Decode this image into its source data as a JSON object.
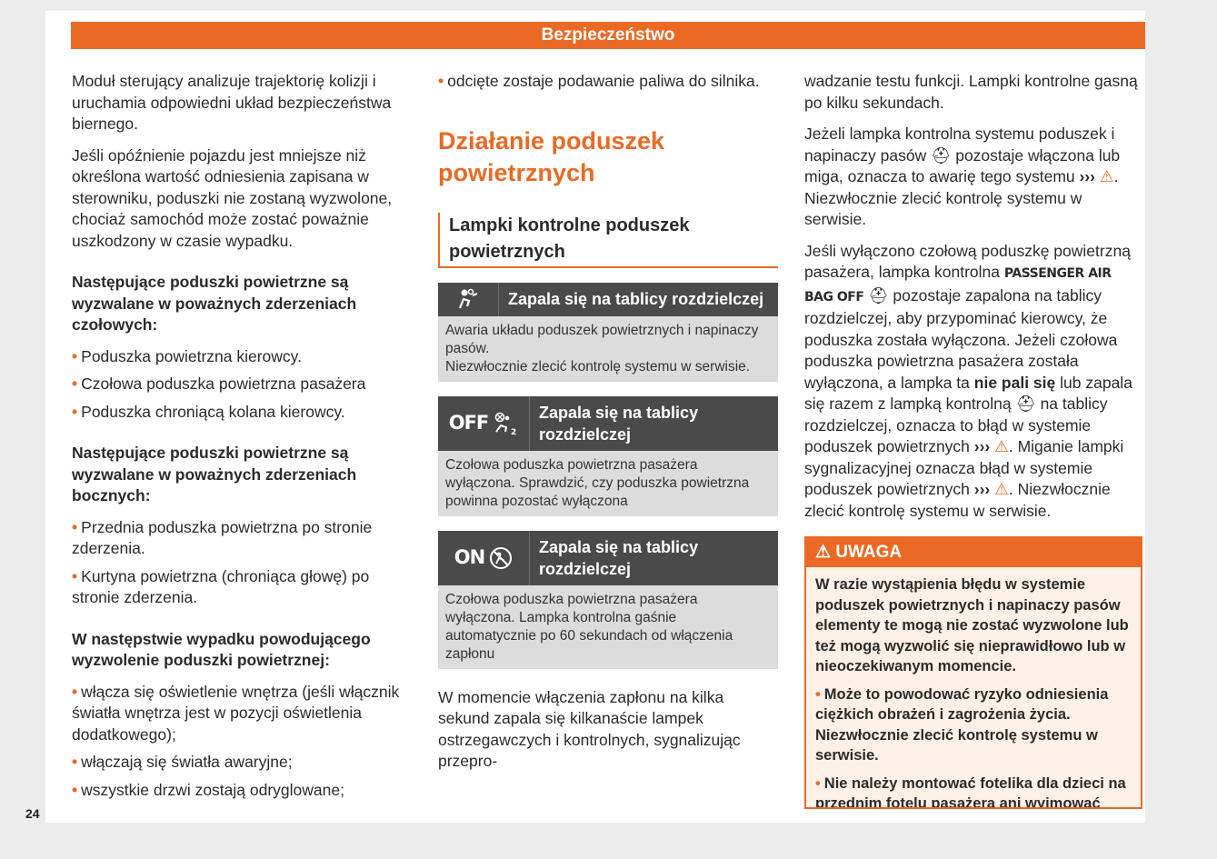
{
  "header": {
    "title": "Bezpieczeństwo"
  },
  "page_number": "24",
  "col1": {
    "p1": "Moduł sterujący analizuje trajektorię kolizji i uruchamia odpowiedni układ bezpieczeństwa biernego.",
    "p2": "Jeśli opóźnienie pojazdu jest mniejsze niż określona wartość odniesienia zapisana w sterowniku, poduszki nie zostaną wyzwolone, chociaż samochód może zostać poważnie uszkodzony w czasie wypadku.",
    "h1": "Następujące poduszki powietrzne są wyzwalane w poważnych zderzeniach czołowych:",
    "list1": [
      "Poduszka powietrzna kierowcy.",
      "Czołowa poduszka powietrzna pasażera",
      "Poduszka chroniącą kolana kierowcy."
    ],
    "h2": "Następujące poduszki powietrzne są wyzwalane w poważnych zderzeniach bocznych:",
    "list2": [
      "Przednia poduszka powietrzna po stronie zderzenia.",
      "Kurtyna powietrzna (chroniąca głowę) po stronie zderzenia."
    ],
    "h3": "W następstwie wypadku powodującego wyzwolenie poduszki powietrznej:",
    "list3": [
      "włącza się oświetlenie wnętrza (jeśli włącznik światła wnętrza jest w pozycji oświetlenia dodatkowego);",
      "włączają się światła awaryjne;",
      "wszystkie drzwi zostają odryglowane;"
    ]
  },
  "col2": {
    "list_cont": "odcięte zostaje podawanie paliwa do silnika.",
    "section_title": "Działanie poduszek powietrznych",
    "subsection_title": "Lampki kontrolne poduszek powietrznych",
    "tables": [
      {
        "icon": "airbag-warning-icon",
        "icon_text": "",
        "header": "Zapala się na tablicy rozdzielczej",
        "lines": [
          "Awaria układu poduszek powietrznych i napinaczy pasów.",
          "Niezwłocznie zlecić kontrolę systemu w serwisie."
        ]
      },
      {
        "icon": "passenger-airbag-off-icon",
        "icon_text": "OFF",
        "header": "Zapala się na tablicy rozdzielczej",
        "lines": [
          "Czołowa poduszka powietrzna pasażera wyłączona. Sprawdzić, czy poduszka powietrzna powinna pozostać wyłączona"
        ]
      },
      {
        "icon": "passenger-airbag-on-icon",
        "icon_text": "ON",
        "header": "Zapala się na tablicy rozdzielczej",
        "lines": [
          "Czołowa poduszka powietrzna pasażera wyłączona. Lampka kontrolna gaśnie automatycznie po 60 sekundach od włączenia zapłonu"
        ]
      }
    ],
    "p_end": "W momencie włączenia zapłonu na kilka sekund zapala się kilkanaście lampek ostrzegawczych i kontrolnych, sygnalizując przepro-"
  },
  "col3": {
    "p1": "wadzanie testu funkcji. Lampki kontrolne gasną po kilku sekundach.",
    "p2a": "Jeżeli lampka kontrolna systemu poduszek i napinaczy pasów",
    "p2b": "pozostaje włączona lub miga, oznacza to awarię tego systemu",
    "p2c": ". Niezwłocznie zlecić kontrolę systemu w serwisie.",
    "p3a": "Jeśli wyłączono czołową poduszkę powietrzną pasażera, lampka kontrolna",
    "p3_label": "PASSENGER AIR BAG OFF",
    "p3b": "pozostaje zapalona na tablicy rozdzielczej, aby przypominać kierowcy, że poduszka została wyłączona. Jeżeli czołowa poduszka powietrzna pasażera została wyłączona, a lampka ta",
    "p3_bold": "nie pali się",
    "p3c": "lub zapala się razem z lampką kontrolną",
    "p3d": "na tablicy rozdzielczej, oznacza to błąd w systemie poduszek powietrznych",
    "p3e": ". Miganie lampki sygnalizacyjnej oznacza błąd w systemie poduszek powietrznych",
    "p3f": ". Niezwłocznie zlecić kontrolę systemu w serwisie.",
    "arrow": "›››",
    "warning": {
      "title": "UWAGA",
      "text": "W razie wystąpienia błędu w systemie poduszek powietrznych i napinaczy pasów elementy te mogą nie zostać wyzwolone lub też mogą wyzwolić się nieprawidłowo lub w nieoczekiwanym momencie.",
      "bullets": [
        "Może to powodować ryzyko odniesienia ciężkich obrażeń i zagrożenia życia. Niezwłocznie zlecić kontrolę systemu w serwisie.",
        "Nie należy montować fotelika dla dzieci na przednim fotelu pasażera ani wyjmować"
      ]
    }
  },
  "colors": {
    "accent": "#ea6a25",
    "table_header": "#4a4a4a",
    "table_body": "#dcdcdc"
  }
}
